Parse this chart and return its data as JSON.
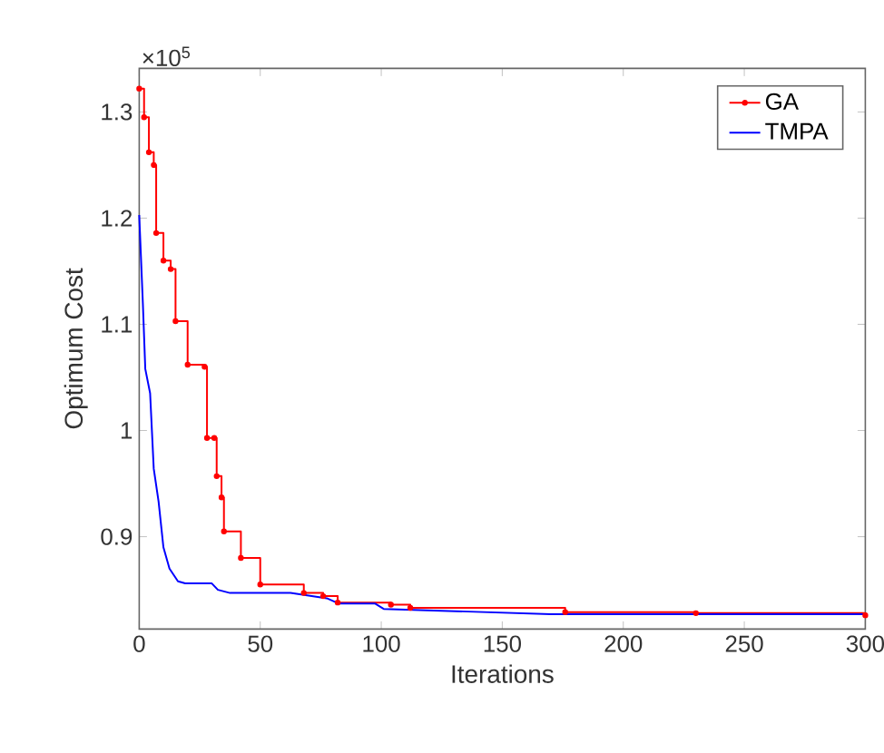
{
  "chart_data": {
    "type": "line",
    "xlabel": "Iterations",
    "ylabel": "Optimum Cost",
    "annotations": [
      "×10$^{5}$"
    ],
    "xlim": [
      0,
      300
    ],
    "xticks": [
      0,
      50,
      100,
      150,
      200,
      250,
      300
    ],
    "ylim": [
      0.813,
      1.341
    ],
    "yticks": [
      0.9,
      1,
      1.1,
      1.2,
      1.3
    ],
    "legend": "top right",
    "grid": false,
    "series": [
      {
        "name": "GA",
        "type": "step",
        "marker": "circle",
        "color": "#ff0000",
        "x": [
          0,
          2,
          4,
          6,
          7,
          10,
          13,
          15,
          20,
          27,
          28,
          31,
          32,
          34,
          35,
          42,
          50,
          68,
          76,
          82,
          104,
          112,
          176,
          230,
          300
        ],
        "values": [
          1.322,
          1.295,
          1.262,
          1.25,
          1.186,
          1.16,
          1.152,
          1.103,
          1.062,
          1.06,
          0.993,
          0.993,
          0.957,
          0.937,
          0.905,
          0.88,
          0.855,
          0.847,
          0.844,
          0.838,
          0.836,
          0.833,
          0.829,
          0.828,
          0.826
        ]
      },
      {
        "name": "TMPA",
        "marker": "none",
        "color": "#0000ff",
        "x": [
          0,
          1.5,
          2.5,
          4.5,
          6,
          8,
          10,
          12.5,
          16,
          19,
          30,
          32.5,
          37.5,
          62.5,
          77.5,
          82.5,
          97.5,
          101,
          170,
          300
        ],
        "values": [
          1.203,
          1.12,
          1.058,
          1.035,
          0.964,
          0.933,
          0.89,
          0.87,
          0.858,
          0.856,
          0.856,
          0.85,
          0.847,
          0.847,
          0.842,
          0.837,
          0.837,
          0.832,
          0.827,
          0.827
        ]
      }
    ]
  }
}
